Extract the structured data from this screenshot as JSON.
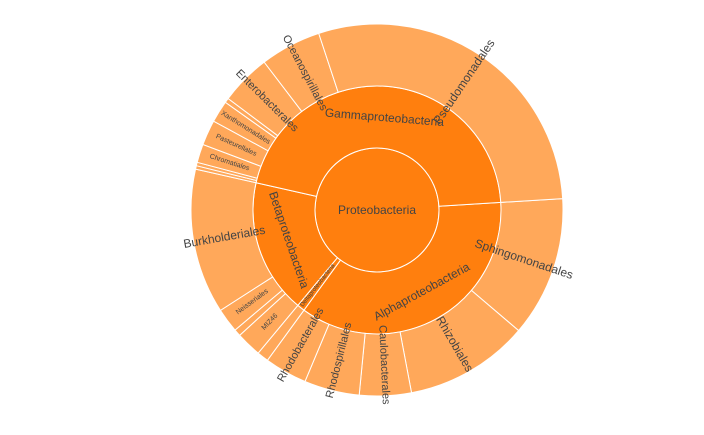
{
  "chart_data": {
    "type": "sunburst",
    "colors": {
      "inner": "#ff7f0e",
      "outer": "#ffa85a",
      "edge": "#ffffff",
      "label": "#444444"
    },
    "nodes": [
      {
        "id": "root",
        "label": "Proteobacteria",
        "parent": "",
        "value": 100
      },
      {
        "id": "alpha",
        "label": "Alphaproteobacteria",
        "parent": "root",
        "value": 36.0
      },
      {
        "id": "delta",
        "label": "Deltaproteobacteria",
        "parent": "root",
        "value": 1.0
      },
      {
        "id": "beta",
        "label": "Betaproteobacteria",
        "parent": "root",
        "value": 17.5
      },
      {
        "id": "gamma",
        "label": "Gammaproteobacteria",
        "parent": "root",
        "value": 45.5
      },
      {
        "id": "sphingo",
        "label": "Sphingomonadales",
        "parent": "alpha",
        "value": 12.2
      },
      {
        "id": "rhizo",
        "label": "Rhizobiales",
        "parent": "alpha",
        "value": 10.8
      },
      {
        "id": "caulo",
        "label": "Caulobacterales",
        "parent": "alpha",
        "value": 4.5
      },
      {
        "id": "rhodospir",
        "label": "Rhodospirillales",
        "parent": "alpha",
        "value": 4.8
      },
      {
        "id": "rhodobac",
        "label": "Rhodobacterales",
        "parent": "alpha",
        "value": 3.7
      },
      {
        "id": "deltachild",
        "label": "",
        "parent": "delta",
        "value": 1.0
      },
      {
        "id": "miz46",
        "label": "MIZ46",
        "parent": "beta",
        "value": 2.2
      },
      {
        "id": "betasmall",
        "label": "",
        "parent": "beta",
        "value": 0.6
      },
      {
        "id": "neisseria",
        "label": "Neisseriales",
        "parent": "beta",
        "value": 2.1
      },
      {
        "id": "burkhold",
        "label": "Burkholderiales",
        "parent": "beta",
        "value": 12.6
      },
      {
        "id": "gsmall1",
        "label": "",
        "parent": "gamma",
        "value": 0.3
      },
      {
        "id": "gsmall2",
        "label": "",
        "parent": "gamma",
        "value": 0.3
      },
      {
        "id": "chromat",
        "label": "Chromatiales",
        "parent": "gamma",
        "value": 1.6
      },
      {
        "id": "pasteur",
        "label": "Pasteurellales",
        "parent": "gamma",
        "value": 2.2
      },
      {
        "id": "xantho",
        "label": "Xanthomonadales",
        "parent": "gamma",
        "value": 1.9
      },
      {
        "id": "gsmall3",
        "label": "",
        "parent": "gamma",
        "value": 0.4
      },
      {
        "id": "entero",
        "label": "Enterobacterales",
        "parent": "gamma",
        "value": 4.4
      },
      {
        "id": "oceano",
        "label": "Oceanospirillales",
        "parent": "gamma",
        "value": 5.3
      },
      {
        "id": "pseudo",
        "label": "Pseudomonadales",
        "parent": "gamma",
        "value": 29.1
      }
    ]
  }
}
